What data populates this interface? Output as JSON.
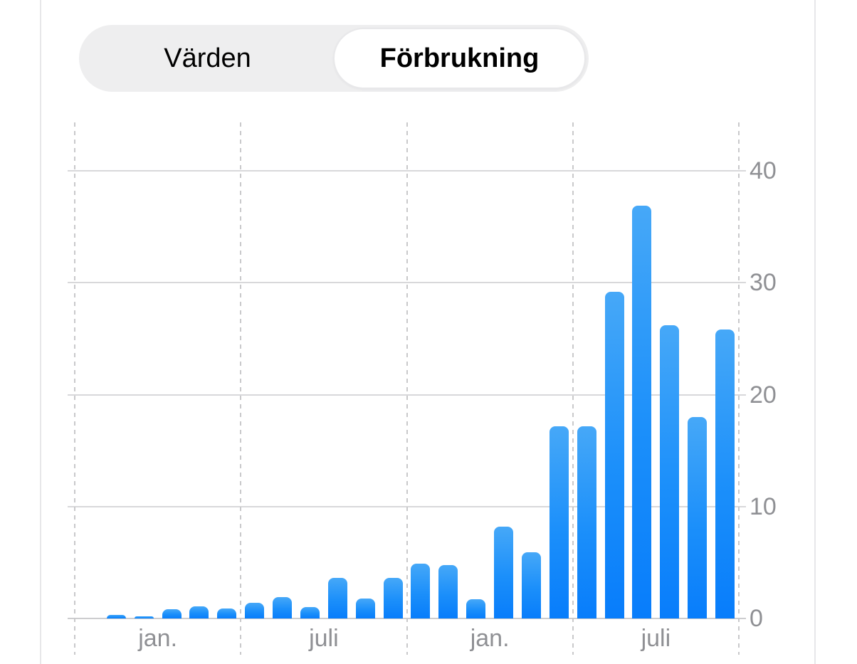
{
  "segmented_control": {
    "options": [
      {
        "label": "Värden",
        "selected": false
      },
      {
        "label": "Förbrukning",
        "selected": true
      }
    ]
  },
  "chart_data": {
    "type": "bar",
    "title": "",
    "values": [
      0,
      0.3,
      0.2,
      0.8,
      1.1,
      0.9,
      1.4,
      1.9,
      1.0,
      3.6,
      1.8,
      3.6,
      4.9,
      4.8,
      1.7,
      8.2,
      5.9,
      17.2,
      17.2,
      29.2,
      36.9,
      26.2,
      18.0,
      25.8
    ],
    "bars_per_section": 6,
    "x_section_labels": [
      "jan.",
      "juli",
      "jan.",
      "juli"
    ],
    "y_ticks": [
      0,
      10,
      20,
      30,
      40
    ],
    "ylim": [
      0,
      44.3
    ],
    "grid": "horizontal solid lines at y ticks, vertical dashed lines at half-year section boundaries",
    "legend_position": "none",
    "colors": {
      "bar_gradient_top": "#46a8f8",
      "bar_gradient_bottom": "#087dfb",
      "gridline": "#d8d8da",
      "dashed_line": "#c9c9cb",
      "axis_label": "#8f9094",
      "segment_background": "#eeeeef",
      "segment_selected_background": "#ffffff"
    }
  }
}
